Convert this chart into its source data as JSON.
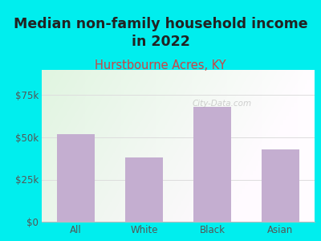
{
  "title": "Median non-family household income\nin 2022",
  "subtitle": "Hurstbourne Acres, KY",
  "categories": [
    "All",
    "White",
    "Black",
    "Asian"
  ],
  "values": [
    52000,
    38000,
    68000,
    43000
  ],
  "bar_color": "#c4aed0",
  "title_fontsize": 12.5,
  "title_color": "#222222",
  "subtitle_color": "#cc4444",
  "subtitle_fontsize": 10.5,
  "tick_label_color": "#555555",
  "background_outer": "#00eeee",
  "ylim": [
    0,
    90000
  ],
  "yticks": [
    0,
    25000,
    50000,
    75000
  ],
  "ytick_labels": [
    "$0",
    "$25k",
    "$50k",
    "$75k"
  ],
  "watermark": "City-Data.com",
  "grid_color": "#dddddd",
  "axis_line_color": "#bbbbbb"
}
